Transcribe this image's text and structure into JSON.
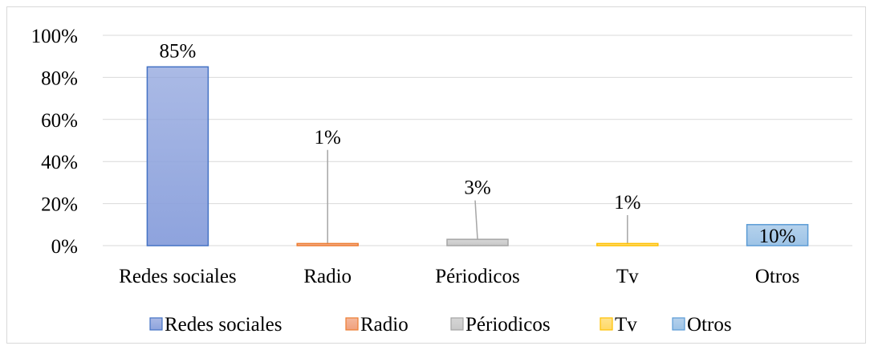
{
  "chart_data": {
    "type": "bar",
    "categories": [
      "Redes sociales",
      "Radio",
      "Périodicos",
      "Tv",
      "Otros"
    ],
    "values": [
      85,
      1,
      3,
      1,
      10
    ],
    "data_labels": [
      "85%",
      "1%",
      "3%",
      "1%",
      "10%"
    ],
    "yticks": [
      0,
      20,
      40,
      60,
      80,
      100
    ],
    "ytick_labels": [
      "0%",
      "20%",
      "40%",
      "60%",
      "80%",
      "100%"
    ],
    "ylim": [
      0,
      100
    ],
    "grid": true,
    "legend": "bottom",
    "colors": [
      "#8ea3dd",
      "#f0a07c",
      "#c8c8c8",
      "#ffd966",
      "#9dc3e6"
    ],
    "edge_colors": [
      "#4472c4",
      "#ed7d31",
      "#a5a5a5",
      "#ffc000",
      "#5b9bd5"
    ]
  }
}
